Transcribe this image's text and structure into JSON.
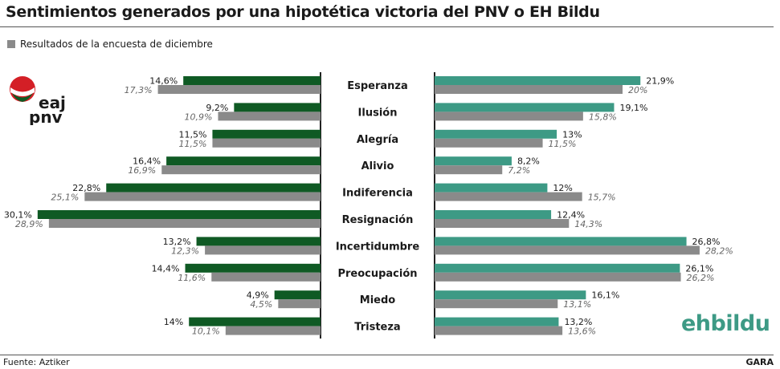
{
  "title": "Sentimientos generados por una hipotética victoria del PNV o EH Bildu",
  "legend": {
    "label": "Resultados de la encuesta de diciembre"
  },
  "logos": {
    "pnv_text_1": "eaj",
    "pnv_text_2": "pnv",
    "ehbildu_text": "ehbildu"
  },
  "footer": {
    "source": "Fuente: Aztiker",
    "credit": "GARA"
  },
  "colors": {
    "pnv_current": "#0f5a24",
    "ehbildu_current": "#3d9a85",
    "previous": "#8a8a8a",
    "pnv_logo_red": "#d41f26"
  },
  "chart_data": {
    "type": "bar",
    "orientation": "horizontal-diverging",
    "categories": [
      "Esperanza",
      "Ilusión",
      "Alegría",
      "Alivio",
      "Indiferencia",
      "Resignación",
      "Incertidumbre",
      "Preocupación",
      "Miedo",
      "Tristeza"
    ],
    "panels": [
      {
        "side": "left",
        "logo": "eaj pnv",
        "series": [
          {
            "values": [
              14.6,
              9.2,
              11.5,
              16.4,
              22.8,
              30.1,
              13.2,
              14.4,
              4.9,
              14
            ],
            "labels": [
              "14,6%",
              "9,2%",
              "11,5%",
              "16,4%",
              "22,8%",
              "30,1%",
              "13,2%",
              "14,4%",
              "4,9%",
              "14%"
            ]
          },
          {
            "name": "Resultados de la encuesta de diciembre",
            "values": [
              17.3,
              10.9,
              11.5,
              16.9,
              25.1,
              28.9,
              12.3,
              11.6,
              4.5,
              10.1
            ],
            "labels": [
              "17,3%",
              "10,9%",
              "11,5%",
              "16,9%",
              "25,1%",
              "28,9%",
              "12,3%",
              "11,6%",
              "4,5%",
              "10,1%"
            ]
          }
        ]
      },
      {
        "side": "right",
        "logo": "ehbildu",
        "series": [
          {
            "values": [
              21.9,
              19.1,
              13,
              8.2,
              12,
              12.4,
              26.8,
              26.1,
              16.1,
              13.2
            ],
            "labels": [
              "21,9%",
              "19,1%",
              "13%",
              "8,2%",
              "12%",
              "12,4%",
              "26,8%",
              "26,1%",
              "16,1%",
              "13,2%"
            ]
          },
          {
            "name": "Resultados de la encuesta de diciembre",
            "values": [
              20,
              15.8,
              11.5,
              7.2,
              15.7,
              14.3,
              28.2,
              26.2,
              13.1,
              13.6
            ],
            "labels": [
              "20%",
              "15,8%",
              "11,5%",
              "7,2%",
              "15,7%",
              "14,3%",
              "28,2%",
              "26,2%",
              "13,1%",
              "13,6%"
            ]
          }
        ]
      }
    ],
    "grid": false,
    "legend_position": "top-left"
  }
}
